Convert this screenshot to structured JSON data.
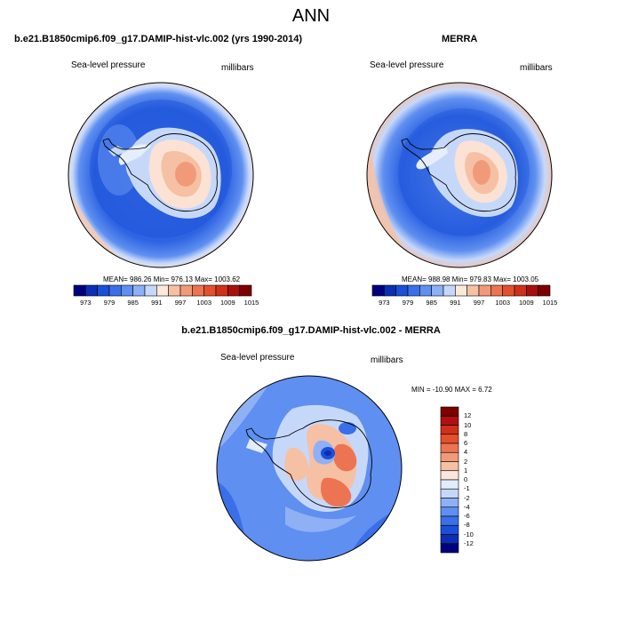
{
  "main_title": "ANN",
  "panels": [
    {
      "title": "b.e21.B1850cmip6.f09_g17.DAMIP-hist-vlc.002 (yrs 1990-2014)",
      "left_label": "Sea-level pressure",
      "right_label": "millibars",
      "stats": "MEAN= 986.26   Min= 976.13   Max= 1003.62"
    },
    {
      "title": "MERRA",
      "left_label": "Sea-level pressure",
      "right_label": "millibars",
      "stats": "MEAN= 988.98   Min= 979.83   Max= 1003.05"
    },
    {
      "title": "b.e21.B1850cmip6.f09_g17.DAMIP-hist-vlc.002 - MERRA",
      "left_label": "Sea-level pressure",
      "right_label": "millibars",
      "stats": "MIN = -10.90 MAX =   6.72"
    }
  ],
  "colorbar_abs": {
    "labels": [
      "973",
      "979",
      "985",
      "991",
      "997",
      "1003",
      "1009",
      "1015"
    ],
    "colors": [
      "#00007f",
      "#0a2fb4",
      "#1a4fd8",
      "#3a6fe8",
      "#5f8ff0",
      "#8fb0f5",
      "#c6d8fa",
      "#fbe9dc",
      "#f6c0a4",
      "#f19a7a",
      "#ec7452",
      "#e4502e",
      "#d0301a",
      "#a81010",
      "#7d0000"
    ]
  },
  "colorbar_diff": {
    "labels": [
      "12",
      "10",
      "8",
      "6",
      "4",
      "2",
      "1",
      "0",
      "-1",
      "-2",
      "-4",
      "-6",
      "-8",
      "-10",
      "-12"
    ],
    "colors": [
      "#7d0000",
      "#b01010",
      "#d0301a",
      "#e4502e",
      "#ec7452",
      "#f19a7a",
      "#f6c0a4",
      "#fbe6dc",
      "#e2ecfb",
      "#c6d8fa",
      "#8fb0f5",
      "#5f8ff0",
      "#3a6fe8",
      "#1a4fd8",
      "#0a2fb4",
      "#00007f"
    ]
  }
}
